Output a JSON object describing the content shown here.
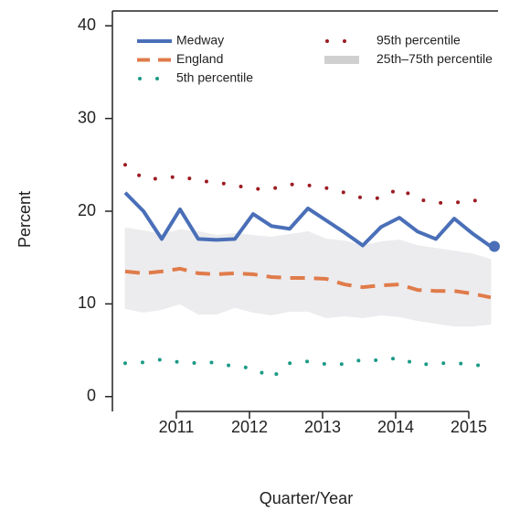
{
  "chart_data": {
    "type": "line",
    "x_label": "Quarter/Year",
    "y_label": "Percent",
    "x": [
      2010.3,
      2010.55,
      2010.8,
      2011.05,
      2011.3,
      2011.55,
      2011.8,
      2012.05,
      2012.3,
      2012.55,
      2012.8,
      2013.05,
      2013.3,
      2013.55,
      2013.8,
      2014.05,
      2014.3,
      2014.55,
      2014.8,
      2015.05,
      2015.3
    ],
    "series": [
      {
        "name": "Medway",
        "color": "#4a6fb8",
        "style": "solid",
        "end_marker": true,
        "values": [
          22,
          20,
          17,
          20.2,
          17,
          16.9,
          17,
          19.7,
          18.4,
          18.1,
          20.3,
          19,
          17.7,
          16.3,
          18.3,
          19.3,
          17.8,
          17,
          19.2,
          17.6,
          16.2
        ]
      },
      {
        "name": "England",
        "color": "#e07b4a",
        "style": "dashed",
        "values": [
          13.5,
          13.3,
          13.5,
          13.8,
          13.3,
          13.2,
          13.3,
          13.2,
          12.9,
          12.8,
          12.8,
          12.7,
          12.1,
          11.8,
          12.0,
          12.1,
          11.5,
          11.4,
          11.4,
          11.1,
          10.7
        ]
      },
      {
        "name": "5th percentile",
        "color": "#1a9a86",
        "style": "dotted",
        "values": [
          3.6,
          3.7,
          4,
          3.7,
          3.6,
          3.7,
          3.2,
          3.1,
          2,
          3.6,
          3.8,
          3.5,
          3.5,
          4,
          3.9,
          4.2,
          3.4,
          3.6,
          3.6,
          3.5,
          3.1
        ]
      },
      {
        "name": "95th percentile",
        "color": "#9b1b22",
        "style": "dotted",
        "values": [
          25,
          23.5,
          23.5,
          23.8,
          23.3,
          23.1,
          22.8,
          22.4,
          22.4,
          22.9,
          22.8,
          22.5,
          22,
          21.4,
          21.4,
          22.5,
          21.3,
          20.9,
          20.9,
          21.2,
          20.8
        ]
      },
      {
        "name": "25th–75th percentile",
        "color": "#ececee",
        "legend_color": "#d0d0d0",
        "style": "band",
        "high": [
          18.2,
          17.9,
          17.5,
          18,
          17.8,
          17.4,
          17.6,
          17.4,
          17.2,
          17.5,
          17.8,
          17,
          16.8,
          16.3,
          16.7,
          16.9,
          16.3,
          16,
          15.7,
          15.4,
          14.8
        ],
        "low": [
          9.5,
          9.1,
          9.4,
          10,
          8.9,
          8.9,
          9.6,
          9.1,
          8.8,
          9.2,
          9.2,
          8.5,
          8.7,
          8.5,
          8.8,
          8.6,
          8.2,
          7.9,
          7.6,
          7.6,
          7.8
        ]
      }
    ],
    "xlim": [
      2010.125,
      2015.4
    ],
    "xticks": [
      2011,
      2012,
      2013,
      2014,
      2015
    ],
    "ylim": [
      -1.6,
      41.6
    ],
    "yticks": [
      0,
      10,
      20,
      30,
      40
    ]
  }
}
